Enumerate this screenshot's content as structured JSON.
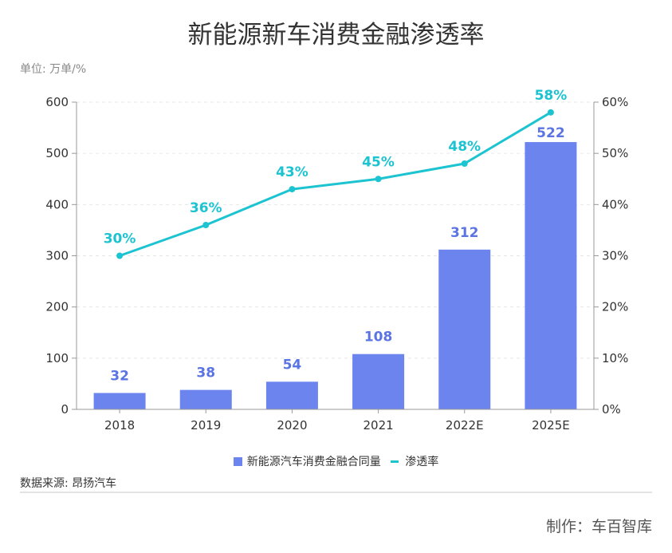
{
  "title": "新能源新车消费金融渗透率",
  "unit_label": "单位: 万单/%",
  "source": "数据来源: 昂扬汽车",
  "credit": "制作：车百智库",
  "colors": {
    "bar": "#6b84ee",
    "line": "#1cc3d0",
    "bar_label": "#5b74e4",
    "line_label": "#1cc3d0"
  },
  "chart_data": {
    "type": "bar",
    "categories": [
      "2018",
      "2019",
      "2020",
      "2021",
      "2022E",
      "2025E"
    ],
    "series": [
      {
        "name": "新能源汽车消费金融合同量",
        "type": "bar",
        "axis": "left",
        "values": [
          32,
          38,
          54,
          108,
          312,
          522
        ],
        "labels": [
          "32",
          "38",
          "54",
          "108",
          "312",
          "522"
        ]
      },
      {
        "name": "渗透率",
        "type": "line",
        "axis": "right",
        "values": [
          30,
          36,
          43,
          45,
          48,
          58
        ],
        "labels": [
          "30%",
          "36%",
          "43%",
          "45%",
          "48%",
          "58%"
        ]
      }
    ],
    "y_left": {
      "ylim": [
        0,
        600
      ],
      "ticks": [
        "0",
        "100",
        "200",
        "300",
        "400",
        "500",
        "600"
      ]
    },
    "y_right": {
      "ylim": [
        0,
        60
      ],
      "ticks": [
        "0%",
        "10%",
        "20%",
        "30%",
        "40%",
        "50%",
        "60%"
      ]
    },
    "grid": true,
    "legend": "bottom"
  }
}
